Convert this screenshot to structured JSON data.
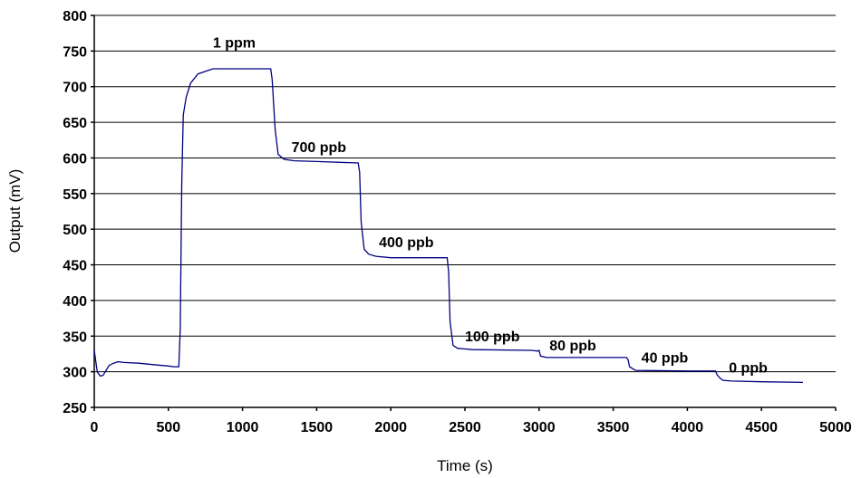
{
  "chart_data": {
    "type": "line",
    "title": "",
    "xlabel": "Time (s)",
    "ylabel": "Output (mV)",
    "xlim": [
      0,
      5000
    ],
    "ylim": [
      250,
      800
    ],
    "xticks": [
      0,
      500,
      1000,
      1500,
      2000,
      2500,
      3000,
      3500,
      4000,
      4500,
      5000
    ],
    "yticks": [
      250,
      300,
      350,
      400,
      450,
      500,
      550,
      600,
      650,
      700,
      750,
      800
    ],
    "grid": {
      "horizontal": true,
      "vertical": false
    },
    "legend": "none",
    "series_color": "#000080",
    "series": [
      {
        "x": [
          0,
          20,
          40,
          60,
          80,
          100,
          130,
          160,
          200,
          300,
          400,
          500,
          540,
          570,
          580,
          590,
          600,
          620,
          650,
          700,
          800,
          1000,
          1190,
          1200,
          1220,
          1240,
          1280,
          1350,
          1500,
          1780,
          1790,
          1800,
          1820,
          1850,
          1900,
          2000,
          2380,
          2390,
          2400,
          2420,
          2450,
          2550,
          2950,
          2990,
          3000,
          3010,
          3050,
          3500,
          3590,
          3600,
          3610,
          3650,
          4000,
          4180,
          4190,
          4200,
          4220,
          4240,
          4300,
          4500,
          4780
        ],
        "y": [
          330,
          300,
          294,
          295,
          302,
          309,
          312,
          314,
          313,
          312,
          310,
          308,
          307,
          307,
          360,
          560,
          660,
          685,
          705,
          718,
          725,
          725,
          725,
          710,
          640,
          605,
          598,
          596,
          595,
          593,
          580,
          510,
          472,
          465,
          462,
          460,
          460,
          440,
          370,
          337,
          333,
          331,
          330,
          329,
          330,
          322,
          320,
          320,
          320,
          317,
          307,
          302,
          301,
          301,
          301,
          296,
          291,
          288,
          287,
          286,
          285
        ]
      }
    ],
    "annotations": [
      {
        "text": "1 ppm",
        "x": 800,
        "y": 755
      },
      {
        "text": "700 ppb",
        "x": 1330,
        "y": 608
      },
      {
        "text": "400 ppb",
        "x": 1920,
        "y": 475
      },
      {
        "text": "100 ppb",
        "x": 2500,
        "y": 343
      },
      {
        "text": "80 ppb",
        "x": 3070,
        "y": 330
      },
      {
        "text": "40 ppb",
        "x": 3690,
        "y": 313
      },
      {
        "text": "0 ppb",
        "x": 4280,
        "y": 299
      }
    ]
  }
}
